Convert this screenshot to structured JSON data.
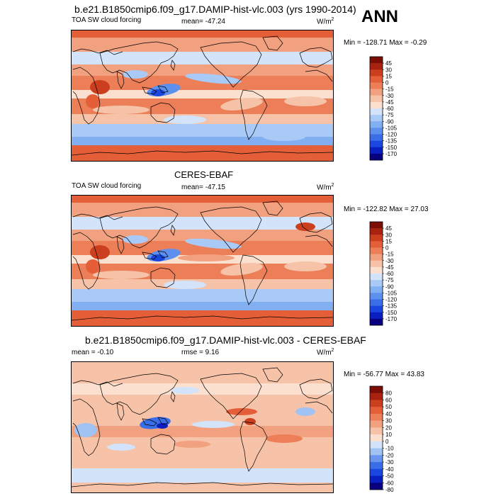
{
  "figure": {
    "title": "b.e21.B1850cmip6.f09_g17.DAMIP-hist-vlc.003 (yrs 1990-2014)",
    "season": "ANN"
  },
  "colors": {
    "levels_abs": [
      "#08007f",
      "#0a1fc0",
      "#1a47e0",
      "#3a6de8",
      "#5d8fee",
      "#82aef2",
      "#a9caf6",
      "#d2e3fa",
      "#fbe0cf",
      "#f6c3a8",
      "#f1a17f",
      "#ec7f58",
      "#e45f38",
      "#cb3f1f",
      "#a8220f",
      "#7a0e05"
    ],
    "levels_diff": [
      "#08007f",
      "#0a1fc0",
      "#1a47e0",
      "#3a6de8",
      "#6a96ef",
      "#a0c3f4",
      "#d2e3fa",
      "#fbe0cf",
      "#f6c3a8",
      "#f1a17f",
      "#ec7f58",
      "#e45f38",
      "#cb3f1f",
      "#a8220f",
      "#7a0e05"
    ],
    "land": "#000000"
  },
  "panels": [
    {
      "title": "",
      "left_label": "TOA SW cloud forcing",
      "center_label": "mean= -47.24",
      "units": "W/m",
      "units_sup": "2",
      "minmax": "Min = -128.71 Max =  -0.29",
      "cbar_labels": [
        "45",
        "30",
        "15",
        "0",
        "-15",
        "-30",
        "-45",
        "-60",
        "-75",
        "-90",
        "-105",
        "-120",
        "-135",
        "-150",
        "-170"
      ]
    },
    {
      "title": "CERES-EBAF",
      "left_label": "TOA SW cloud forcing",
      "center_label": "mean= -47.15",
      "units": "W/m",
      "units_sup": "2",
      "minmax": "Min = -122.82 Max =  27.03",
      "cbar_labels": [
        "45",
        "30",
        "15",
        "0",
        "-15",
        "-30",
        "-45",
        "-60",
        "-75",
        "-90",
        "-105",
        "-120",
        "-135",
        "-150",
        "-170"
      ]
    },
    {
      "title": "b.e21.B1850cmip6.f09_g17.DAMIP-hist-vlc.003 - CERES-EBAF",
      "left_label": "mean =  -0.10",
      "center_label": "rmse =   9.16",
      "units": "W/m",
      "units_sup": "2",
      "minmax": "Min = -56.77 Max =  43.83",
      "cbar_labels": [
        "80",
        "60",
        "50",
        "40",
        "30",
        "20",
        "10",
        "0",
        "-10",
        "-20",
        "-30",
        "-40",
        "-50",
        "-60",
        "-80"
      ]
    }
  ]
}
